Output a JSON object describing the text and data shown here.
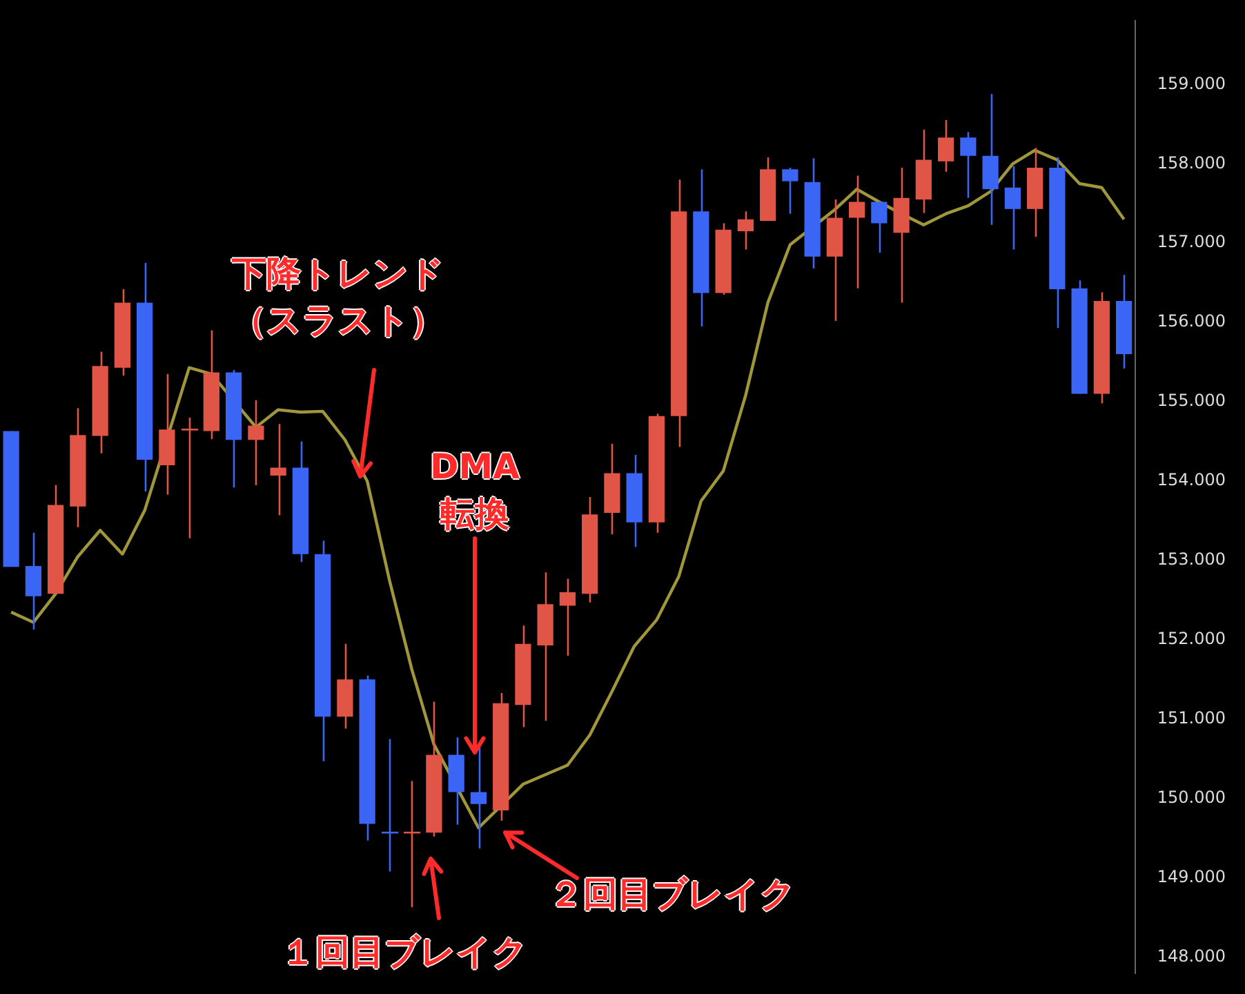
{
  "chart_data": {
    "type": "candlestick",
    "categories": [
      null,
      null,
      null,
      null,
      null,
      null,
      null,
      null,
      null,
      null,
      null,
      null,
      null,
      null,
      null,
      null,
      null,
      null,
      null,
      null,
      null,
      null,
      null,
      null,
      null,
      null,
      null,
      null,
      null,
      null,
      null,
      null,
      null,
      null,
      null,
      null,
      null,
      null,
      null,
      null,
      null,
      null,
      null,
      null,
      null,
      null,
      null,
      null,
      null,
      null,
      null
    ],
    "ohlc": [
      [
        154.63,
        154.63,
        152.92,
        152.92
      ],
      [
        152.93,
        153.35,
        152.13,
        152.55
      ],
      [
        152.58,
        153.95,
        152.58,
        153.7
      ],
      [
        153.68,
        154.92,
        153.42,
        154.58
      ],
      [
        154.57,
        155.63,
        154.35,
        155.45
      ],
      [
        155.43,
        156.42,
        155.33,
        156.25
      ],
      [
        156.25,
        156.75,
        153.87,
        154.27
      ],
      [
        154.2,
        155.35,
        153.83,
        154.65
      ],
      [
        154.65,
        154.8,
        153.28,
        154.65
      ],
      [
        154.63,
        155.9,
        154.53,
        155.37
      ],
      [
        155.37,
        155.4,
        153.92,
        154.52
      ],
      [
        154.52,
        155.02,
        153.95,
        154.7
      ],
      [
        154.07,
        154.72,
        153.57,
        154.17
      ],
      [
        154.17,
        154.5,
        152.98,
        153.08
      ],
      [
        153.08,
        153.25,
        150.47,
        151.03
      ],
      [
        151.03,
        151.95,
        150.88,
        151.5
      ],
      [
        151.5,
        151.55,
        149.47,
        149.68
      ],
      [
        149.57,
        150.75,
        149.08,
        149.57
      ],
      [
        149.57,
        150.22,
        148.63,
        149.57
      ],
      [
        149.57,
        151.22,
        149.52,
        150.55
      ],
      [
        150.55,
        150.77,
        149.67,
        150.08
      ],
      [
        150.08,
        150.68,
        149.37,
        149.93
      ],
      [
        149.85,
        151.33,
        149.72,
        151.2
      ],
      [
        151.18,
        152.18,
        150.9,
        151.95
      ],
      [
        151.93,
        152.85,
        150.98,
        152.45
      ],
      [
        152.43,
        152.77,
        151.8,
        152.6
      ],
      [
        152.58,
        153.8,
        152.47,
        153.58
      ],
      [
        153.6,
        154.47,
        153.33,
        154.1
      ],
      [
        154.1,
        154.33,
        153.17,
        153.48
      ],
      [
        153.48,
        154.85,
        153.35,
        154.82
      ],
      [
        154.82,
        157.8,
        154.43,
        157.4
      ],
      [
        157.4,
        157.93,
        155.95,
        156.37
      ],
      [
        156.37,
        157.25,
        156.35,
        157.17
      ],
      [
        157.15,
        157.4,
        156.92,
        157.3
      ],
      [
        157.28,
        158.08,
        157.28,
        157.93
      ],
      [
        157.93,
        157.95,
        157.37,
        157.78
      ],
      [
        157.77,
        158.07,
        156.68,
        156.83
      ],
      [
        156.83,
        157.55,
        156.02,
        157.32
      ],
      [
        157.32,
        157.85,
        156.43,
        157.52
      ],
      [
        157.52,
        157.52,
        156.88,
        157.25
      ],
      [
        157.13,
        157.95,
        156.25,
        157.57
      ],
      [
        157.55,
        158.43,
        157.38,
        158.05
      ],
      [
        158.03,
        158.55,
        157.9,
        158.33
      ],
      [
        158.33,
        158.4,
        157.57,
        158.1
      ],
      [
        158.1,
        158.88,
        157.23,
        157.68
      ],
      [
        157.7,
        157.97,
        156.92,
        157.43
      ],
      [
        157.43,
        158.2,
        157.08,
        157.95
      ],
      [
        157.95,
        158.08,
        155.93,
        156.42
      ],
      [
        156.43,
        156.53,
        155.1,
        155.1
      ],
      [
        155.1,
        156.38,
        154.98,
        156.27
      ],
      [
        156.27,
        156.6,
        155.42,
        155.6
      ]
    ],
    "colors": [
      "#3b66f5",
      "#3b66f5",
      "#e05545",
      "#e05545",
      "#e05545",
      "#e05545",
      "#3b66f5",
      "#e05545",
      "#e05545",
      "#e05545",
      "#3b66f5",
      "#e05545",
      "#e05545",
      "#3b66f5",
      "#3b66f5",
      "#e05545",
      "#3b66f5",
      "#3b66f5",
      "#e05545",
      "#e05545",
      "#3b66f5",
      "#3b66f5",
      "#e05545",
      "#e05545",
      "#e05545",
      "#e05545",
      "#e05545",
      "#e05545",
      "#3b66f5",
      "#e05545",
      "#e05545",
      "#3b66f5",
      "#e05545",
      "#e05545",
      "#e05545",
      "#3b66f5",
      "#3b66f5",
      "#e05545",
      "#e05545",
      "#3b66f5",
      "#e05545",
      "#e05545",
      "#e05545",
      "#3b66f5",
      "#3b66f5",
      "#3b66f5",
      "#e05545",
      "#3b66f5",
      "#3b66f5",
      "#e05545",
      "#3b66f5"
    ],
    "series": [
      {
        "type": "line",
        "color": "#a0963a",
        "values": [
          152.35,
          152.22,
          152.58,
          153.05,
          153.38,
          153.08,
          153.63,
          null,
          155.43,
          155.35,
          null,
          154.68,
          154.9,
          154.87,
          154.88,
          154.52,
          154.0,
          152.75,
          151.63,
          150.68,
          null,
          149.63,
          null,
          150.18,
          150.3,
          150.42,
          150.8,
          151.35,
          151.92,
          152.25,
          152.8,
          153.75,
          154.13,
          155.08,
          156.25,
          156.98,
          null,
          157.42,
          157.68,
          157.52,
          157.37,
          157.23,
          157.37,
          157.47,
          157.65,
          158.0,
          158.17,
          158.05,
          157.75,
          157.7,
          157.3
        ]
      }
    ],
    "ylim": [
      147.8,
      159.8
    ],
    "yticks": [
      {
        "value": 148,
        "label": "148.000"
      },
      {
        "value": 149,
        "label": "149.000"
      },
      {
        "value": 150,
        "label": "150.000"
      },
      {
        "value": 151,
        "label": "151.000"
      },
      {
        "value": 152,
        "label": "152.000"
      },
      {
        "value": 153,
        "label": "153.000"
      },
      {
        "value": 154,
        "label": "154.000"
      },
      {
        "value": 155,
        "label": "155.000"
      },
      {
        "value": 156,
        "label": "156.000"
      },
      {
        "value": 157,
        "label": "157.000"
      },
      {
        "value": 158,
        "label": "158.000"
      },
      {
        "value": 159,
        "label": "159.000"
      }
    ],
    "tick_labels": "y",
    "annotations": [
      "下降トレンド（スラスト）",
      "DMA\n転換",
      "２回目ブレイク",
      "１回目ブレイク"
    ]
  }
}
